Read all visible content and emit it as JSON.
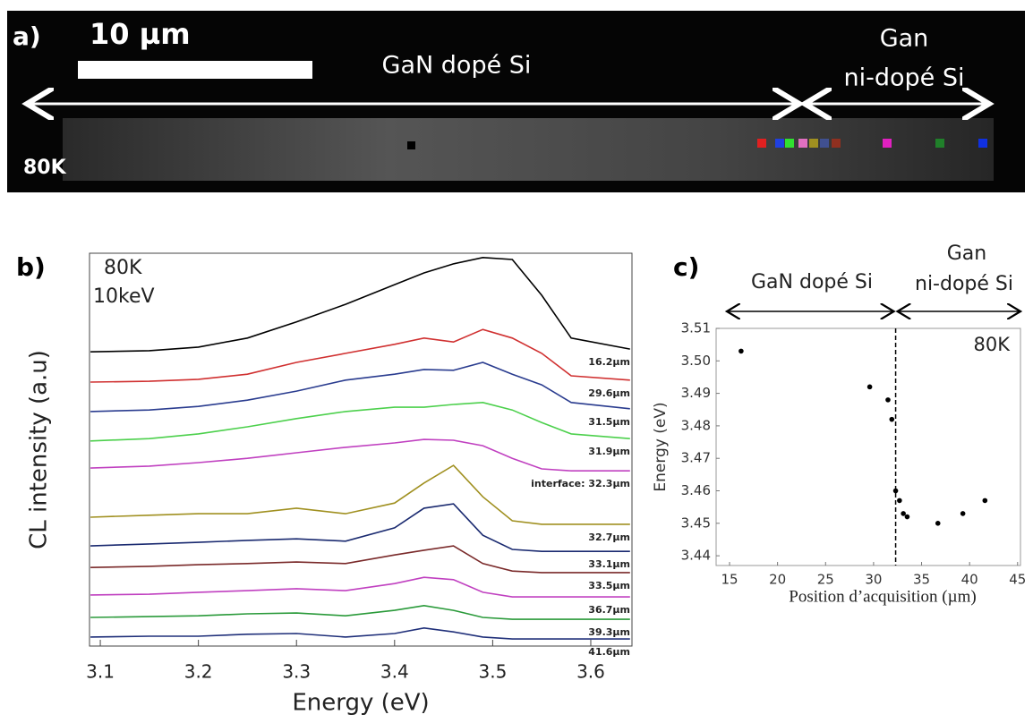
{
  "panel_a": {
    "label": "a)",
    "scale_bar": "10 µm",
    "region_1": "GaN dopé Si",
    "region_2_line1": "Gan",
    "region_2_line2": "ni-dopé Si",
    "temperature": "80K"
  },
  "chart_data": [
    {
      "type": "line",
      "panel_label": "b)",
      "annotations": [
        "80K",
        "10keV"
      ],
      "xlabel": "Energy (eV)",
      "ylabel": "CL  intensity (a.u)",
      "xlim": [
        3.089,
        3.642
      ],
      "ylim": [
        0,
        100
      ],
      "xticks": [
        3.1,
        3.2,
        3.3,
        3.4,
        3.5,
        3.6
      ],
      "x": [
        3.09,
        3.15,
        3.2,
        3.25,
        3.3,
        3.35,
        3.4,
        3.43,
        3.46,
        3.49,
        3.52,
        3.55,
        3.58,
        3.64
      ],
      "series": [
        {
          "name": "16.2µm",
          "color": "#000000",
          "values": [
            74.9,
            75.2,
            76.1,
            78.4,
            82.5,
            87.0,
            92.0,
            95.0,
            97.3,
            98.9,
            98.4,
            89.3,
            78.4,
            75.6
          ]
        },
        {
          "name": "29.6µm",
          "color": "#d03030",
          "values": [
            67.2,
            67.4,
            67.9,
            69.2,
            72.2,
            74.5,
            76.8,
            78.4,
            77.4,
            80.6,
            78.4,
            74.5,
            68.8,
            67.7
          ]
        },
        {
          "name": "31.5µm",
          "color": "#2a3c8f",
          "values": [
            59.7,
            60.1,
            61.0,
            62.6,
            64.9,
            67.7,
            69.2,
            70.4,
            70.2,
            72.2,
            69.2,
            66.5,
            62.0,
            60.4
          ]
        },
        {
          "name": "31.9µm",
          "color": "#4cd04c",
          "values": [
            52.2,
            52.8,
            54.0,
            55.8,
            57.9,
            59.7,
            60.8,
            60.8,
            61.5,
            62.0,
            60.1,
            56.9,
            54.0,
            52.8
          ]
        },
        {
          "name": "interface: 32.3µm",
          "color": "#c040c0",
          "values": [
            45.3,
            45.8,
            46.7,
            47.8,
            49.2,
            50.6,
            51.7,
            52.6,
            52.4,
            51.0,
            47.8,
            45.1,
            44.6,
            44.6
          ]
        },
        {
          "name": "32.7µm",
          "color": "#a09020",
          "values": [
            32.8,
            33.3,
            33.7,
            33.7,
            35.1,
            33.7,
            36.4,
            41.5,
            46.0,
            38.0,
            31.9,
            31.0,
            31.0,
            31.0
          ]
        },
        {
          "name": "33.1µm",
          "color": "#1a2a70",
          "values": [
            25.5,
            26.0,
            26.4,
            26.9,
            27.3,
            26.7,
            30.1,
            35.1,
            36.2,
            28.2,
            24.6,
            24.1,
            24.1,
            24.1
          ]
        },
        {
          "name": "33.5µm",
          "color": "#7a2a2a",
          "values": [
            20.0,
            20.3,
            20.7,
            21.0,
            21.4,
            21.0,
            23.2,
            24.4,
            25.5,
            21.0,
            19.1,
            18.7,
            18.7,
            18.7
          ]
        },
        {
          "name": "36.7µm",
          "color": "#c040c0",
          "values": [
            13.0,
            13.2,
            13.7,
            14.1,
            14.6,
            14.1,
            15.9,
            17.5,
            16.9,
            13.7,
            12.5,
            12.5,
            12.5,
            12.5
          ]
        },
        {
          "name": "39.3µm",
          "color": "#2a9a3a",
          "values": [
            7.3,
            7.5,
            7.7,
            8.2,
            8.4,
            7.7,
            9.1,
            10.3,
            9.1,
            7.3,
            6.8,
            6.8,
            6.8,
            6.8
          ]
        },
        {
          "name": "41.6µm",
          "color": "#20307a",
          "values": [
            2.3,
            2.5,
            2.5,
            3.0,
            3.2,
            2.3,
            3.2,
            4.6,
            3.6,
            2.3,
            1.8,
            1.8,
            1.8,
            1.8
          ]
        }
      ]
    },
    {
      "type": "scatter",
      "panel_label": "c)",
      "regions": [
        "GaN dopé Si",
        "Gan",
        "ni-dopé Si"
      ],
      "annotation": "80K",
      "xlabel": "Position d’acquisition (µm)",
      "ylabel": "Energy (eV)",
      "xlim": [
        13.6,
        45.3
      ],
      "ylim": [
        3.437,
        3.51
      ],
      "xticks": [
        15,
        20,
        25,
        30,
        35,
        40,
        45
      ],
      "yticks": [
        3.44,
        3.45,
        3.46,
        3.47,
        3.48,
        3.49,
        {
          "value": 3.5,
          "label": "3.50"
        },
        3.51
      ],
      "vline": 32.3,
      "color": "#000000",
      "x": [
        16.2,
        29.6,
        31.5,
        31.9,
        32.3,
        32.7,
        33.1,
        33.5,
        36.7,
        39.3,
        41.6
      ],
      "values": [
        3.503,
        3.492,
        3.488,
        3.482,
        3.46,
        3.457,
        3.453,
        3.452,
        3.45,
        3.453,
        3.457
      ]
    }
  ]
}
